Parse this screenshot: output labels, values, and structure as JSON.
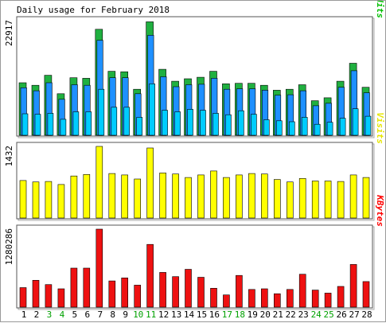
{
  "chart_data": {
    "type": "bar",
    "title": "Daily usage for February 2018",
    "days": [
      "1",
      "2",
      "3",
      "4",
      "5",
      "6",
      "7",
      "8",
      "9",
      "10",
      "11",
      "12",
      "13",
      "14",
      "15",
      "16",
      "17",
      "18",
      "19",
      "20",
      "21",
      "22",
      "23",
      "24",
      "25",
      "26",
      "27",
      "28"
    ],
    "weekend_days": [
      "3",
      "4",
      "10",
      "11",
      "17",
      "18",
      "24",
      "25"
    ],
    "panels": [
      {
        "id": "hits",
        "max_label": "22917",
        "ymax": 22917,
        "legend": [
          {
            "text": "Pages",
            "color": "#00c8c8"
          },
          {
            "text": "/",
            "color": "#404040"
          },
          {
            "text": "Files",
            "color": "#0080ff"
          },
          {
            "text": "/",
            "color": "#404040"
          },
          {
            "text": "Hits",
            "color": "#00c000"
          }
        ],
        "series": [
          {
            "name": "Hits",
            "color": "#20b040",
            "values": [
              10500,
              10000,
              12000,
              8300,
              11500,
              11400,
              21200,
              12800,
              12700,
              9200,
              22700,
              13200,
              10800,
              11300,
              11600,
              12800,
              10300,
              10400,
              10400,
              10000,
              9000,
              9200,
              10100,
              6900,
              7500,
              10800,
              14400,
              9600
            ]
          },
          {
            "name": "Files",
            "color": "#1e90ff",
            "values": [
              9500,
              8900,
              10500,
              7200,
              10100,
              10000,
              19000,
              11500,
              11500,
              8300,
              20000,
              11700,
              9700,
              10100,
              10200,
              11400,
              9200,
              9300,
              9300,
              9000,
              8000,
              8100,
              8900,
              5900,
              6400,
              9600,
              12900,
              8500
            ]
          },
          {
            "name": "Pages",
            "color": "#00ccff",
            "values": [
              4300,
              4200,
              4400,
              3200,
              4700,
              4700,
              9200,
              5600,
              5600,
              3600,
              10300,
              5000,
              4700,
              5200,
              5000,
              4400,
              4100,
              4900,
              4200,
              3100,
              2900,
              2700,
              3600,
              2200,
              2600,
              3400,
              5300,
              3800
            ]
          }
        ]
      },
      {
        "id": "visits",
        "max_label": "1432",
        "ymax": 1432,
        "legend": [
          {
            "text": "Visits",
            "color": "#e6e600"
          }
        ],
        "series": [
          {
            "name": "Visits",
            "color": "#ffff00",
            "values": [
              750,
              720,
              730,
              670,
              840,
              870,
              1432,
              890,
              860,
              780,
              1400,
              900,
              880,
              810,
              860,
              940,
              810,
              860,
              890,
              880,
              770,
              720,
              790,
              740,
              740,
              730,
              860,
              810
            ]
          }
        ]
      },
      {
        "id": "kbytes",
        "max_label": "1280286",
        "ymax": 1280286,
        "legend": [
          {
            "text": "KBytes",
            "color": "#ff0000"
          }
        ],
        "series": [
          {
            "name": "KBytes",
            "color": "#ee1111",
            "values": [
              320000,
              440000,
              370000,
              300000,
              640000,
              640000,
              1280286,
              430000,
              480000,
              360000,
              1030000,
              570000,
              500000,
              620000,
              490000,
              310000,
              200000,
              520000,
              290000,
              300000,
              220000,
              290000,
              540000,
              280000,
              230000,
              340000,
              700000,
              420000
            ]
          }
        ]
      }
    ],
    "colors": {
      "weekday_label": "#000000",
      "weekend_label": "#00a000",
      "bar_outline": "#000000",
      "panel_border": "#555555",
      "panel_shadow": "#aaaaaa"
    }
  }
}
